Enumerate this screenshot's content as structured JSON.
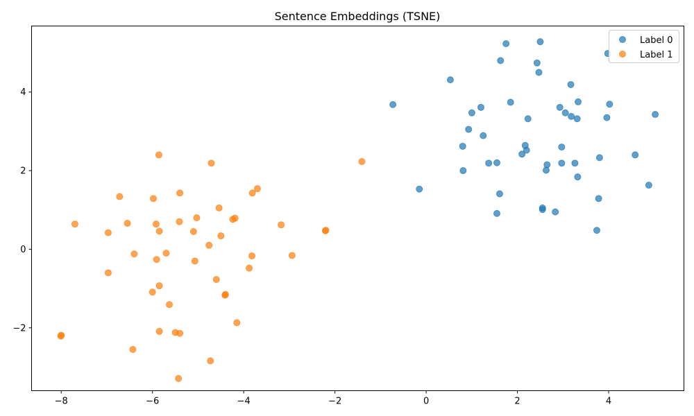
{
  "chart_data": {
    "type": "scatter",
    "title": "Sentence Embeddings (TSNE)",
    "xlabel": "",
    "ylabel": "",
    "xlim": [
      -8.65,
      5.65
    ],
    "ylim": [
      -3.6,
      5.68
    ],
    "xticks": [
      -8,
      -6,
      -4,
      -2,
      0,
      2,
      4
    ],
    "yticks": [
      -2,
      0,
      2,
      4
    ],
    "xtick_labels": [
      "−8",
      "−6",
      "−4",
      "−2",
      "0",
      "2",
      "4"
    ],
    "ytick_labels": [
      "−2",
      "0",
      "2",
      "4"
    ],
    "grid": false,
    "legend_position": "top-right",
    "series": [
      {
        "name": "Label 0",
        "color": "#1f77b4",
        "points": [
          [
            1.75,
            5.23
          ],
          [
            2.5,
            5.28
          ],
          [
            3.98,
            4.98
          ],
          [
            1.63,
            4.8
          ],
          [
            2.43,
            4.74
          ],
          [
            2.47,
            4.5
          ],
          [
            0.53,
            4.31
          ],
          [
            3.17,
            4.19
          ],
          [
            -0.73,
            3.68
          ],
          [
            1.85,
            3.74
          ],
          [
            3.33,
            3.75
          ],
          [
            4.02,
            3.69
          ],
          [
            1.2,
            3.61
          ],
          [
            2.93,
            3.61
          ],
          [
            1.0,
            3.47
          ],
          [
            3.05,
            3.47
          ],
          [
            3.18,
            3.38
          ],
          [
            5.02,
            3.43
          ],
          [
            3.96,
            3.35
          ],
          [
            2.23,
            3.32
          ],
          [
            3.31,
            3.32
          ],
          [
            0.93,
            3.05
          ],
          [
            1.25,
            2.89
          ],
          [
            0.8,
            2.62
          ],
          [
            2.97,
            2.6
          ],
          [
            2.17,
            2.64
          ],
          [
            2.2,
            2.52
          ],
          [
            2.1,
            2.42
          ],
          [
            4.58,
            2.4
          ],
          [
            3.8,
            2.33
          ],
          [
            1.37,
            2.19
          ],
          [
            1.55,
            2.2
          ],
          [
            2.97,
            2.19
          ],
          [
            3.26,
            2.19
          ],
          [
            2.65,
            2.15
          ],
          [
            2.63,
            2.01
          ],
          [
            0.81,
            2.0
          ],
          [
            3.32,
            1.84
          ],
          [
            4.88,
            1.63
          ],
          [
            -0.15,
            1.53
          ],
          [
            1.61,
            1.41
          ],
          [
            3.78,
            1.29
          ],
          [
            2.55,
            1.05
          ],
          [
            2.55,
            1.01
          ],
          [
            2.83,
            0.95
          ],
          [
            1.55,
            0.91
          ],
          [
            3.74,
            0.48
          ]
        ]
      },
      {
        "name": "Label 1",
        "color": "#ff7f0e",
        "points": [
          [
            -5.86,
            2.4
          ],
          [
            -4.71,
            2.19
          ],
          [
            -1.41,
            2.23
          ],
          [
            -3.7,
            1.54
          ],
          [
            -5.4,
            1.43
          ],
          [
            -3.81,
            1.43
          ],
          [
            -6.72,
            1.34
          ],
          [
            -5.98,
            1.29
          ],
          [
            -4.54,
            1.05
          ],
          [
            -5.03,
            0.8
          ],
          [
            -4.19,
            0.79
          ],
          [
            -4.24,
            0.76
          ],
          [
            -5.41,
            0.7
          ],
          [
            -6.55,
            0.66
          ],
          [
            -7.7,
            0.64
          ],
          [
            -5.92,
            0.64
          ],
          [
            -3.18,
            0.62
          ],
          [
            -2.2,
            0.48
          ],
          [
            -2.21,
            0.47
          ],
          [
            -5.85,
            0.46
          ],
          [
            -5.1,
            0.45
          ],
          [
            -6.97,
            0.42
          ],
          [
            -4.5,
            0.34
          ],
          [
            -4.76,
            0.1
          ],
          [
            -5.7,
            -0.1
          ],
          [
            -6.4,
            -0.12
          ],
          [
            -3.82,
            -0.17
          ],
          [
            -2.94,
            -0.16
          ],
          [
            -5.91,
            -0.26
          ],
          [
            -5.07,
            -0.3
          ],
          [
            -3.88,
            -0.48
          ],
          [
            -6.97,
            -0.6
          ],
          [
            -4.6,
            -0.77
          ],
          [
            -5.85,
            -0.93
          ],
          [
            -6.0,
            -1.09
          ],
          [
            -4.4,
            -1.15
          ],
          [
            -4.41,
            -1.17
          ],
          [
            -5.63,
            -1.41
          ],
          [
            -4.15,
            -1.87
          ],
          [
            -5.85,
            -2.09
          ],
          [
            -5.5,
            -2.12
          ],
          [
            -5.4,
            -2.14
          ],
          [
            -8.0,
            -2.19
          ],
          [
            -8.01,
            -2.21
          ],
          [
            -6.43,
            -2.55
          ],
          [
            -4.73,
            -2.84
          ],
          [
            -5.43,
            -3.29
          ]
        ]
      }
    ]
  }
}
